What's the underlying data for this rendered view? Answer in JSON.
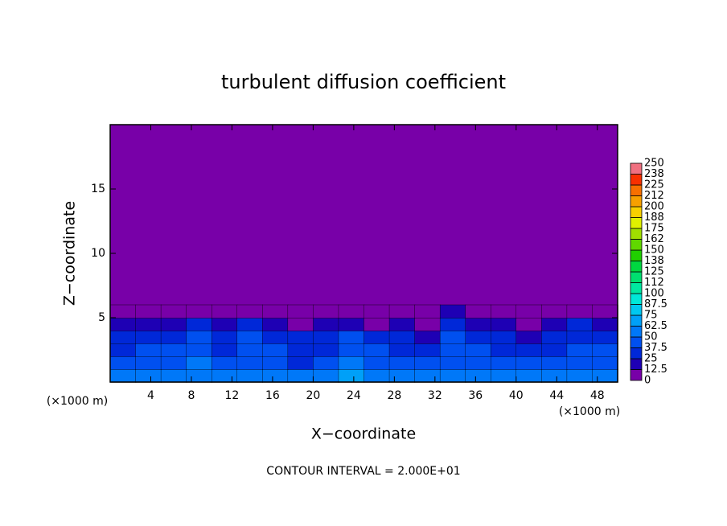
{
  "chart_data": {
    "type": "contour",
    "title": "turbulent diffusion coefficient",
    "x_label": "X−coordinate",
    "y_label": "Z−coordinate",
    "x_unit": "(×1000 m)",
    "z_unit": "(×1000 m)",
    "annotation": "CONTOUR INTERVAL = 2.000E+01",
    "xlim": [
      0,
      50
    ],
    "ylim": [
      0,
      20
    ],
    "xticks": [
      4,
      8,
      12,
      16,
      20,
      24,
      28,
      32,
      36,
      40,
      44,
      48
    ],
    "yticks": [
      5,
      10,
      15
    ],
    "colorbar": {
      "levels": [
        0,
        12.5,
        25,
        37.5,
        50,
        62.5,
        75,
        87.5,
        100,
        112,
        125,
        138,
        150,
        162,
        175,
        188,
        200,
        212,
        225,
        238,
        250
      ],
      "colors": [
        "#7800a8",
        "#1e00b4",
        "#0028d8",
        "#0050f0",
        "#0078f8",
        "#00a0f8",
        "#00c8f0",
        "#00e8d8",
        "#00e8a0",
        "#00e070",
        "#00d840",
        "#20d000",
        "#60d800",
        "#a0e000",
        "#e0f000",
        "#f8d000",
        "#f8a000",
        "#f87000",
        "#f83000",
        "#f07080"
      ]
    },
    "field": {
      "x_edges": [
        0,
        2.5,
        5,
        7.5,
        10,
        12.5,
        15,
        17.5,
        20,
        22.5,
        25,
        27.5,
        30,
        32.5,
        35,
        37.5,
        40,
        42.5,
        45,
        47.5,
        50
      ],
      "z_edges": [
        0,
        1,
        2,
        3,
        4,
        5,
        6
      ],
      "values": [
        [
          55,
          52,
          58,
          60,
          56,
          62,
          58,
          54,
          56,
          64,
          60,
          57,
          55,
          58,
          56,
          54,
          56,
          58,
          55,
          57
        ],
        [
          42,
          38,
          45,
          50,
          40,
          48,
          44,
          36,
          40,
          55,
          46,
          42,
          40,
          44,
          42,
          38,
          40,
          44,
          42,
          45
        ],
        [
          35,
          40,
          38,
          45,
          32,
          45,
          38,
          30,
          35,
          48,
          40,
          36,
          30,
          42,
          38,
          30,
          28,
          36,
          40,
          38
        ],
        [
          30,
          35,
          30,
          40,
          28,
          42,
          30,
          28,
          32,
          42,
          35,
          32,
          20,
          40,
          34,
          28,
          22,
          30,
          36,
          32
        ],
        [
          20,
          18,
          22,
          28,
          20,
          30,
          14,
          10,
          15,
          20,
          12,
          18,
          5,
          32,
          20,
          22,
          8,
          15,
          25,
          20
        ],
        [
          0,
          0,
          0,
          0,
          0,
          10,
          0,
          0,
          0,
          5,
          0,
          0,
          0,
          15,
          0,
          0,
          0,
          0,
          5,
          0
        ]
      ]
    }
  }
}
